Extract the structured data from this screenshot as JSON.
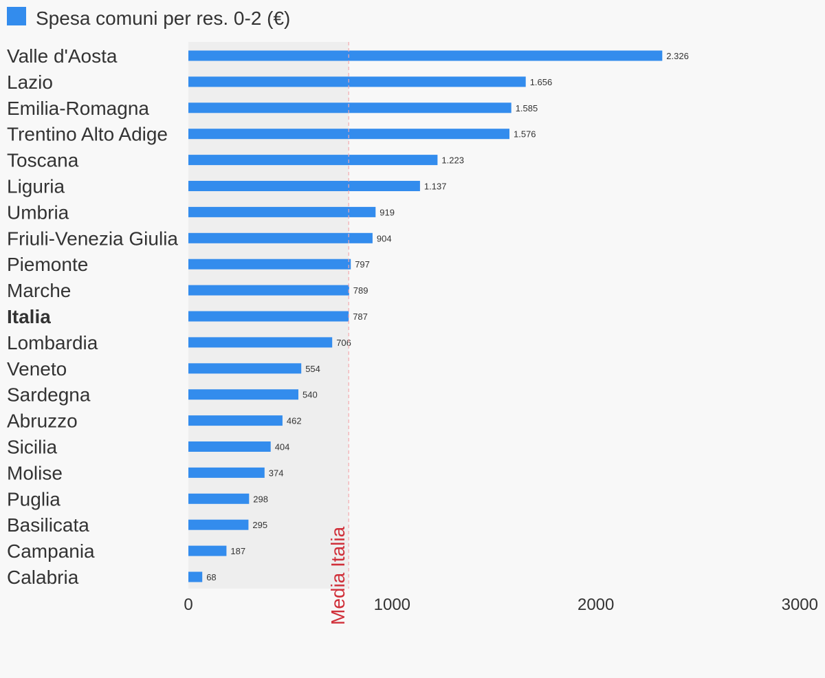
{
  "chart_data": {
    "type": "bar",
    "orientation": "horizontal",
    "legend": [
      {
        "label": "Spesa comuni per res. 0-2 (€)",
        "color": "#338ced"
      }
    ],
    "categories": [
      "Valle d'Aosta",
      "Lazio",
      "Emilia-Romagna",
      "Trentino Alto Adige",
      "Toscana",
      "Liguria",
      "Umbria",
      "Friuli-Venezia Giulia",
      "Piemonte",
      "Marche",
      "Italia",
      "Lombardia",
      "Veneto",
      "Sardegna",
      "Abruzzo",
      "Sicilia",
      "Molise",
      "Puglia",
      "Basilicata",
      "Campania",
      "Calabria"
    ],
    "highlighted_category": "Italia",
    "series": [
      {
        "name": "Spesa comuni per res. 0-2 (€)",
        "color": "#338ced",
        "values": [
          2326,
          1656,
          1585,
          1576,
          1223,
          1137,
          919,
          904,
          797,
          789,
          787,
          706,
          554,
          540,
          462,
          404,
          374,
          298,
          295,
          187,
          68
        ],
        "value_labels": [
          "2.326",
          "1.656",
          "1.585",
          "1.576",
          "1.223",
          "1.137",
          "919",
          "904",
          "797",
          "789",
          "787",
          "706",
          "554",
          "540",
          "462",
          "404",
          "374",
          "298",
          "295",
          "187",
          "68"
        ]
      }
    ],
    "xlim": [
      0,
      3000
    ],
    "x_ticks": [
      0,
      1000,
      2000,
      3000
    ],
    "x_tick_labels": [
      "0",
      "1000",
      "2000",
      "3000"
    ],
    "reference_line": {
      "label": "Media Italia",
      "value": 787,
      "color": "#d0303a"
    },
    "shaded_band": {
      "from": 0,
      "to": 787,
      "color": "#eeeeee"
    }
  }
}
